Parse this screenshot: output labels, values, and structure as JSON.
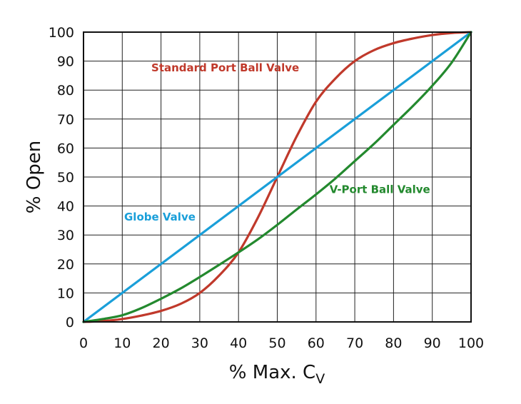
{
  "chart_data": {
    "type": "line",
    "xlabel": "% Max. C",
    "xlabel_subscript": "V",
    "ylabel": "% Open",
    "xlim": [
      0,
      100
    ],
    "ylim": [
      0,
      100
    ],
    "x_ticks": [
      "0",
      "10",
      "20",
      "30",
      "40",
      "50",
      "60",
      "70",
      "80",
      "90",
      "100"
    ],
    "y_ticks": [
      "0",
      "10",
      "20",
      "30",
      "40",
      "50",
      "60",
      "70",
      "80",
      "90",
      "100"
    ],
    "grid": true,
    "legend": "none (inline labels)",
    "series": [
      {
        "name": "Standard Port Ball Valve",
        "color": "#c0392b",
        "x": [
          0,
          5,
          10,
          15,
          20,
          25,
          30,
          35,
          40,
          45,
          50,
          55,
          60,
          65,
          70,
          75,
          80,
          85,
          90,
          95,
          100
        ],
        "y": [
          0,
          0.3,
          1,
          2.2,
          3.8,
          6.2,
          10,
          16,
          24,
          36,
          50,
          64,
          76,
          84,
          90,
          93.8,
          96.2,
          97.8,
          99,
          99.7,
          100
        ]
      },
      {
        "name": "Globe Valve",
        "color": "#1a9fd9",
        "x": [
          0,
          100
        ],
        "y": [
          0,
          100
        ]
      },
      {
        "name": "V-Port Ball Valve",
        "color": "#23892e",
        "x": [
          0,
          5,
          10,
          15,
          20,
          25,
          30,
          35,
          40,
          45,
          50,
          55,
          60,
          65,
          70,
          75,
          80,
          85,
          90,
          95,
          100
        ],
        "y": [
          0,
          1,
          2.3,
          4.8,
          8,
          11.5,
          15.5,
          19.7,
          24,
          28.5,
          33.5,
          38.8,
          44,
          49.5,
          55.5,
          61.5,
          68,
          74.5,
          81.5,
          89.5,
          100
        ]
      }
    ]
  }
}
